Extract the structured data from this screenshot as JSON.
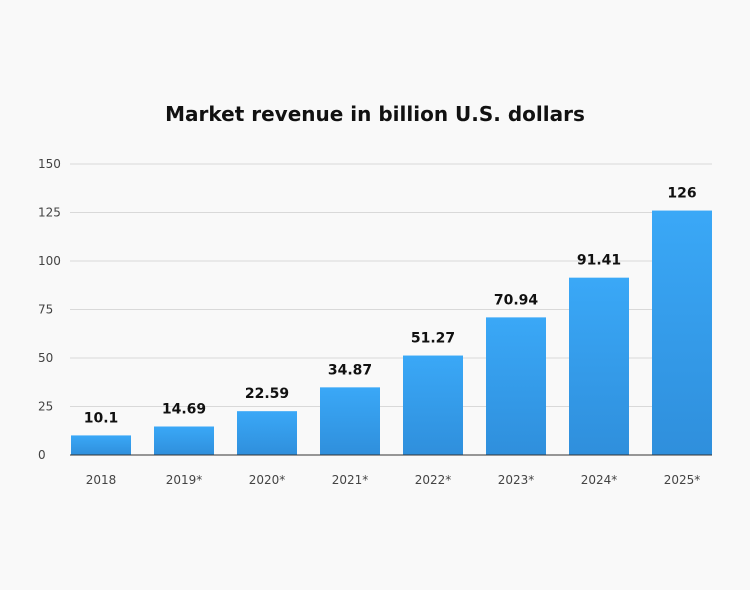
{
  "chart_data": {
    "type": "bar",
    "title": "Market revenue in billion U.S. dollars",
    "categories": [
      "2018",
      "2019*",
      "2020*",
      "2021*",
      "2022*",
      "2023*",
      "2024*",
      "2025*"
    ],
    "values": [
      10.1,
      14.69,
      22.59,
      34.87,
      51.27,
      70.94,
      91.41,
      126
    ],
    "data_labels": [
      "10.1",
      "14.69",
      "22.59",
      "34.87",
      "51.27",
      "70.94",
      "91.41",
      "126"
    ],
    "ylim": [
      0,
      150
    ],
    "yticks": [
      0,
      25,
      50,
      75,
      100,
      125,
      150
    ],
    "grid": true,
    "colors": {
      "bar_top": "#3aa8f7",
      "bar_bottom": "#2f8fdc",
      "grid": "#d9d9d9",
      "axis": "#333333"
    }
  }
}
